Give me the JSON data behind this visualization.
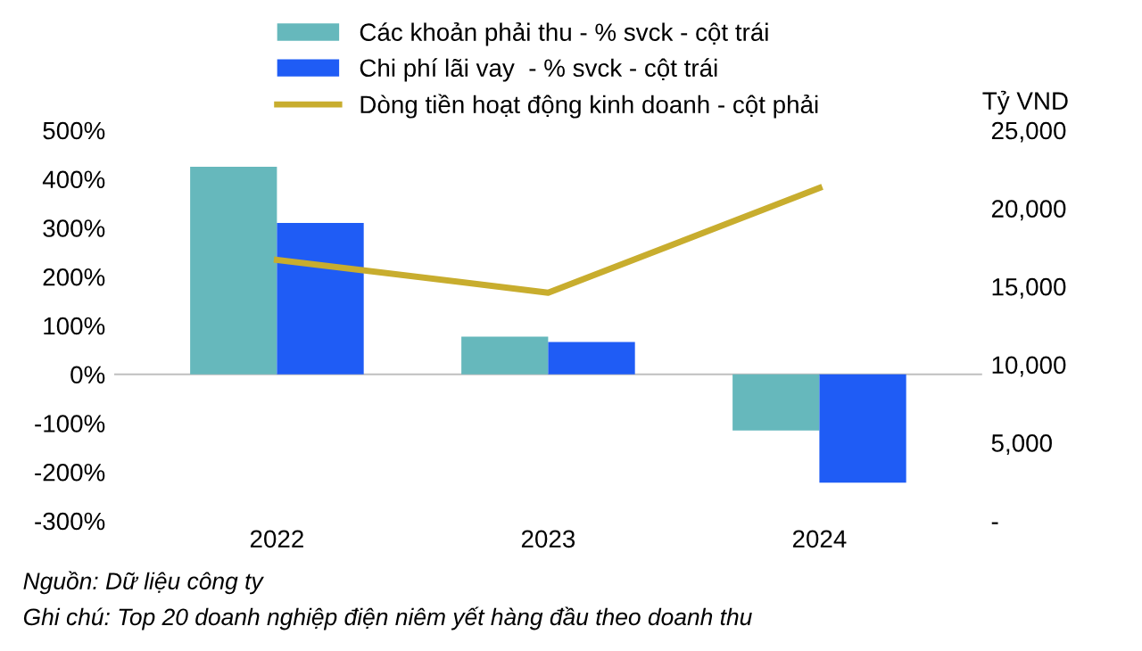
{
  "chart_data": {
    "type": "bar",
    "categories": [
      "2022",
      "2023",
      "2024"
    ],
    "series": [
      {
        "name": "Các khoản phải thu - % svck - cột trái",
        "color": "#66b8bc",
        "values": [
          425,
          77,
          -115
        ]
      },
      {
        "name": "Chi phí lãi vay  - % svck - cột trái",
        "color": "#1f5cf5",
        "values": [
          310,
          66,
          -222
        ]
      },
      {
        "name": "Dòng tiền hoạt động kinh doanh - cột phải",
        "type": "line",
        "axis": "y2",
        "color": "#c8ad2e",
        "values": [
          16700,
          14600,
          21300
        ]
      }
    ],
    "ylim": [
      -300,
      500
    ],
    "yticks": [
      {
        "value": 500,
        "label": "500%"
      },
      {
        "value": 400,
        "label": "400%"
      },
      {
        "value": 300,
        "label": "300%"
      },
      {
        "value": 200,
        "label": "200%"
      },
      {
        "value": 100,
        "label": "100%"
      },
      {
        "value": 0,
        "label": "0%"
      },
      {
        "value": -100,
        "label": "-100%"
      },
      {
        "value": -200,
        "label": "-200%"
      },
      {
        "value": -300,
        "label": "-300%"
      }
    ],
    "y2lim": [
      0,
      25000
    ],
    "y2ticks": [
      {
        "value": 0,
        "label": "-"
      },
      {
        "value": 5000,
        "label": "5,000"
      },
      {
        "value": 10000,
        "label": "10,000"
      },
      {
        "value": 15000,
        "label": "15,000"
      },
      {
        "value": 20000,
        "label": "20,000"
      },
      {
        "value": 25000,
        "label": "25,000"
      }
    ],
    "y2label": "Tỷ VND",
    "legend": "top",
    "grid": false,
    "ref_lines": [
      {
        "axis": "y",
        "value": 0,
        "color": "#bfbfbf"
      }
    ],
    "marker": "none",
    "annotations": [
      "Nguồn: Dữ liệu công ty",
      "Ghi chú: Top 20 doanh nghiệp điện niêm yết hàng đầu theo doanh thu"
    ]
  }
}
